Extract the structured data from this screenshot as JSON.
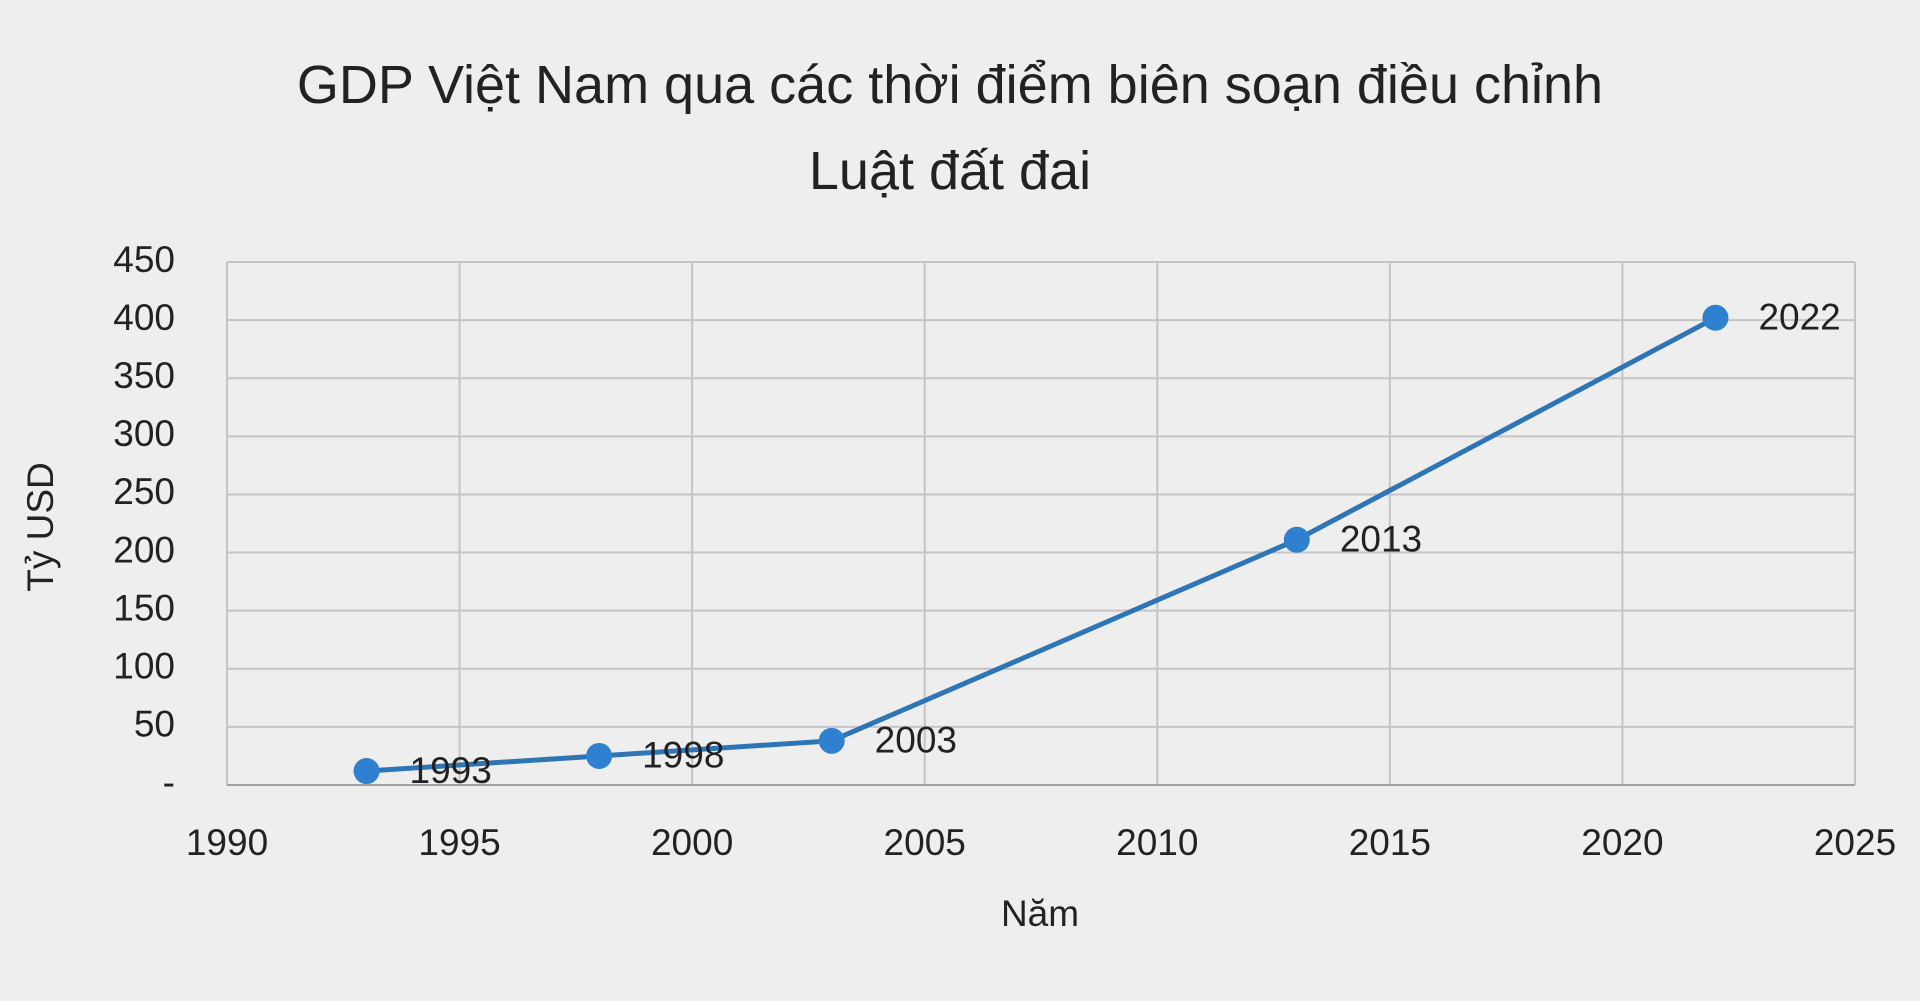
{
  "chart_data": {
    "type": "line",
    "title": "GDP Việt Nam qua các thời điểm biên soạn điều chỉnh\nLuật đất đai",
    "x_label": "Năm",
    "y_label": "Tỷ USD",
    "x": [
      1993,
      1998,
      2003,
      2013,
      2022
    ],
    "series": [
      {
        "name": "GDP",
        "color": "#2e75b6",
        "values": [
          12,
          25,
          38,
          211,
          402
        ]
      }
    ],
    "xlim": [
      1990,
      2025
    ],
    "xticks": [
      1990,
      1995,
      2000,
      2005,
      2010,
      2015,
      2020,
      2025
    ],
    "ylim": [
      0,
      450
    ],
    "yticks": [
      {
        "value": 0,
        "label": "-"
      },
      50,
      100,
      150,
      200,
      250,
      300,
      350,
      400,
      450
    ],
    "grid": true
  }
}
